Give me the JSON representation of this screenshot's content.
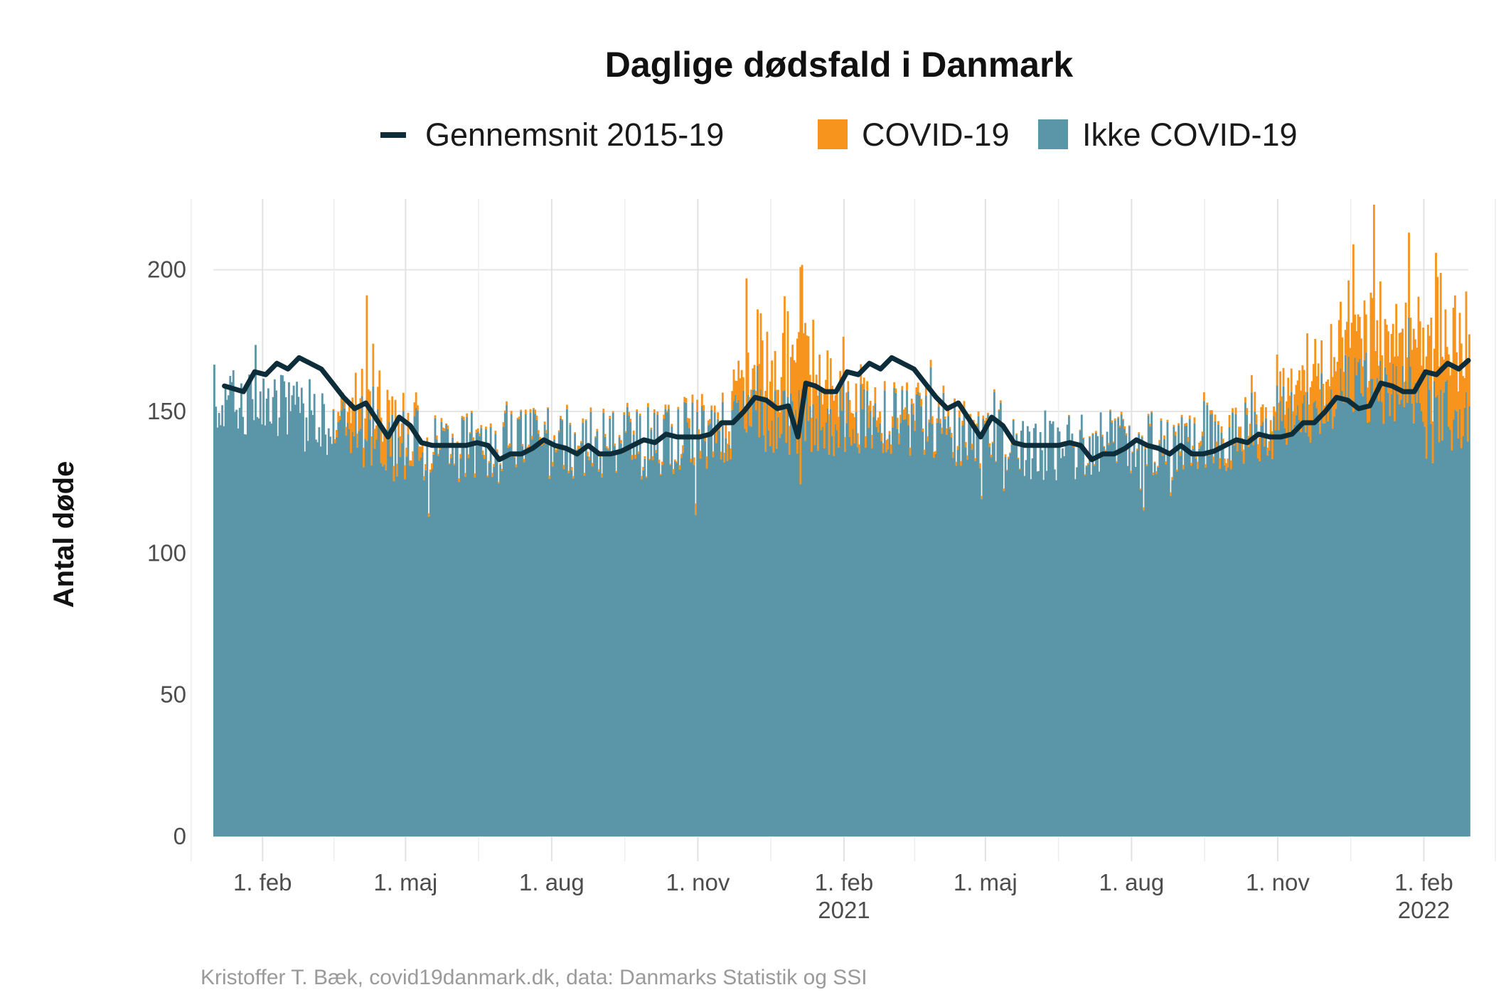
{
  "chart_data": {
    "type": "bar",
    "stacked": true,
    "title": "Daglige dødsfald i Danmark",
    "ylabel": "Antal døde",
    "xlabel": "",
    "caption": "Kristoffer T. Bæk, covid19danmark.dk, data: Danmarks Statistik og SSI",
    "legend_position": "top",
    "grid": true,
    "x_range": [
      "2020-01-01",
      "2022-03-01"
    ],
    "ylim": [
      0,
      225
    ],
    "y_ticks": [
      0,
      50,
      100,
      150,
      200
    ],
    "y_tick_labels": [
      "0",
      "50",
      "100",
      "150",
      "200"
    ],
    "x_ticks": [
      {
        "date": "2020-02-01",
        "label": "1. feb",
        "sublabel": ""
      },
      {
        "date": "2020-05-01",
        "label": "1. maj",
        "sublabel": ""
      },
      {
        "date": "2020-08-01",
        "label": "1. aug",
        "sublabel": ""
      },
      {
        "date": "2020-11-01",
        "label": "1. nov",
        "sublabel": ""
      },
      {
        "date": "2021-02-01",
        "label": "1. feb",
        "sublabel": "2021"
      },
      {
        "date": "2021-05-01",
        "label": "1. maj",
        "sublabel": ""
      },
      {
        "date": "2021-08-01",
        "label": "1. aug",
        "sublabel": ""
      },
      {
        "date": "2021-11-01",
        "label": "1. nov",
        "sublabel": ""
      },
      {
        "date": "2022-02-01",
        "label": "1. feb",
        "sublabel": "2022"
      }
    ],
    "legend": [
      {
        "key": "avg",
        "label": "Gennemsnit 2015-19",
        "kind": "line",
        "color": "#0d2d3a"
      },
      {
        "key": "covid",
        "label": "COVID-19",
        "kind": "fill",
        "color": "#f7941d"
      },
      {
        "key": "noncovid",
        "label": "Ikke COVID-19",
        "kind": "fill",
        "color": "#5b96a8"
      }
    ],
    "series": [
      {
        "name": "Gennemsnit 2015-19",
        "kind": "line",
        "color": "#0d2d3a",
        "points": [
          [
            "2020-01-08",
            159
          ],
          [
            "2020-01-14",
            158
          ],
          [
            "2020-01-20",
            157
          ],
          [
            "2020-01-27",
            164
          ],
          [
            "2020-02-03",
            163
          ],
          [
            "2020-02-10",
            167
          ],
          [
            "2020-02-17",
            165
          ],
          [
            "2020-02-24",
            169
          ],
          [
            "2020-03-02",
            167
          ],
          [
            "2020-03-09",
            165
          ],
          [
            "2020-03-16",
            160
          ],
          [
            "2020-03-23",
            155
          ],
          [
            "2020-03-30",
            151
          ],
          [
            "2020-04-06",
            153
          ],
          [
            "2020-04-13",
            147
          ],
          [
            "2020-04-20",
            141
          ],
          [
            "2020-04-27",
            148
          ],
          [
            "2020-05-04",
            145
          ],
          [
            "2020-05-11",
            139
          ],
          [
            "2020-05-18",
            138
          ],
          [
            "2020-05-25",
            138
          ],
          [
            "2020-06-01",
            138
          ],
          [
            "2020-06-08",
            138
          ],
          [
            "2020-06-15",
            139
          ],
          [
            "2020-06-22",
            138
          ],
          [
            "2020-06-29",
            133
          ],
          [
            "2020-07-06",
            135
          ],
          [
            "2020-07-13",
            135
          ],
          [
            "2020-07-20",
            137
          ],
          [
            "2020-07-27",
            140
          ],
          [
            "2020-08-03",
            138
          ],
          [
            "2020-08-10",
            137
          ],
          [
            "2020-08-17",
            135
          ],
          [
            "2020-08-24",
            138
          ],
          [
            "2020-08-31",
            135
          ],
          [
            "2020-09-07",
            135
          ],
          [
            "2020-09-14",
            136
          ],
          [
            "2020-09-21",
            138
          ],
          [
            "2020-09-28",
            140
          ],
          [
            "2020-10-05",
            139
          ],
          [
            "2020-10-12",
            142
          ],
          [
            "2020-10-19",
            141
          ],
          [
            "2020-10-26",
            141
          ],
          [
            "2020-11-02",
            141
          ],
          [
            "2020-11-09",
            142
          ],
          [
            "2020-11-16",
            146
          ],
          [
            "2020-11-23",
            146
          ],
          [
            "2020-11-30",
            150
          ],
          [
            "2020-12-07",
            155
          ],
          [
            "2020-12-14",
            154
          ],
          [
            "2020-12-21",
            151
          ],
          [
            "2020-12-28",
            152
          ],
          [
            "2021-01-03",
            141
          ],
          [
            "2021-01-08",
            160
          ],
          [
            "2021-01-14",
            159
          ],
          [
            "2021-01-20",
            157
          ],
          [
            "2021-01-27",
            157
          ],
          [
            "2021-02-03",
            164
          ],
          [
            "2021-02-10",
            163
          ],
          [
            "2021-02-17",
            167
          ],
          [
            "2021-02-24",
            165
          ],
          [
            "2021-03-03",
            169
          ],
          [
            "2021-03-10",
            167
          ],
          [
            "2021-03-17",
            165
          ],
          [
            "2021-03-24",
            160
          ],
          [
            "2021-03-31",
            155
          ],
          [
            "2021-04-07",
            151
          ],
          [
            "2021-04-14",
            153
          ],
          [
            "2021-04-21",
            147
          ],
          [
            "2021-04-28",
            141
          ],
          [
            "2021-05-05",
            148
          ],
          [
            "2021-05-12",
            145
          ],
          [
            "2021-05-19",
            139
          ],
          [
            "2021-05-26",
            138
          ],
          [
            "2021-06-02",
            138
          ],
          [
            "2021-06-09",
            138
          ],
          [
            "2021-06-16",
            138
          ],
          [
            "2021-06-23",
            139
          ],
          [
            "2021-06-30",
            138
          ],
          [
            "2021-07-07",
            133
          ],
          [
            "2021-07-14",
            135
          ],
          [
            "2021-07-21",
            135
          ],
          [
            "2021-07-28",
            137
          ],
          [
            "2021-08-04",
            140
          ],
          [
            "2021-08-11",
            138
          ],
          [
            "2021-08-18",
            137
          ],
          [
            "2021-08-25",
            135
          ],
          [
            "2021-09-01",
            138
          ],
          [
            "2021-09-08",
            135
          ],
          [
            "2021-09-15",
            135
          ],
          [
            "2021-09-22",
            136
          ],
          [
            "2021-09-29",
            138
          ],
          [
            "2021-10-06",
            140
          ],
          [
            "2021-10-13",
            139
          ],
          [
            "2021-10-20",
            142
          ],
          [
            "2021-10-27",
            141
          ],
          [
            "2021-11-03",
            141
          ],
          [
            "2021-11-10",
            142
          ],
          [
            "2021-11-17",
            146
          ],
          [
            "2021-11-24",
            146
          ],
          [
            "2021-12-01",
            150
          ],
          [
            "2021-12-08",
            155
          ],
          [
            "2021-12-15",
            154
          ],
          [
            "2021-12-22",
            151
          ],
          [
            "2021-12-29",
            152
          ],
          [
            "2022-01-05",
            160
          ],
          [
            "2022-01-12",
            159
          ],
          [
            "2022-01-19",
            157
          ],
          [
            "2022-01-26",
            157
          ],
          [
            "2022-02-02",
            164
          ],
          [
            "2022-02-09",
            163
          ],
          [
            "2022-02-16",
            167
          ],
          [
            "2022-02-23",
            165
          ],
          [
            "2022-03-01",
            168
          ]
        ]
      },
      {
        "name": "Ikke COVID-19",
        "kind": "bar",
        "color": "#5b96a8",
        "note": "daily non-covid deaths; approximate level read from the bars",
        "level": [
          [
            "2020-01-01",
            155
          ],
          [
            "2020-02-15",
            150
          ],
          [
            "2020-03-15",
            147
          ],
          [
            "2020-04-15",
            140
          ],
          [
            "2020-06-01",
            137
          ],
          [
            "2020-08-01",
            138
          ],
          [
            "2020-10-01",
            139
          ],
          [
            "2020-11-15",
            143
          ],
          [
            "2020-12-15",
            148
          ],
          [
            "2021-01-15",
            146
          ],
          [
            "2021-02-15",
            148
          ],
          [
            "2021-04-01",
            145
          ],
          [
            "2021-06-01",
            138
          ],
          [
            "2021-08-01",
            139
          ],
          [
            "2021-10-01",
            142
          ],
          [
            "2021-11-15",
            150
          ],
          [
            "2021-12-15",
            158
          ],
          [
            "2022-01-15",
            155
          ],
          [
            "2022-02-15",
            150
          ],
          [
            "2022-03-01",
            145
          ]
        ]
      },
      {
        "name": "COVID-19",
        "kind": "bar",
        "color": "#f7941d",
        "note": "daily covid deaths stacked on top; approximate level",
        "level": [
          [
            "2020-01-01",
            0
          ],
          [
            "2020-03-15",
            0
          ],
          [
            "2020-04-01",
            10
          ],
          [
            "2020-04-15",
            12
          ],
          [
            "2020-05-01",
            5
          ],
          [
            "2020-05-20",
            1
          ],
          [
            "2020-10-15",
            1
          ],
          [
            "2020-11-20",
            5
          ],
          [
            "2020-12-10",
            18
          ],
          [
            "2020-12-25",
            22
          ],
          [
            "2021-01-05",
            28
          ],
          [
            "2021-01-20",
            15
          ],
          [
            "2021-02-10",
            6
          ],
          [
            "2021-03-01",
            3
          ],
          [
            "2021-04-01",
            2
          ],
          [
            "2021-06-01",
            0
          ],
          [
            "2021-09-01",
            1
          ],
          [
            "2021-10-15",
            4
          ],
          [
            "2021-11-15",
            12
          ],
          [
            "2021-12-10",
            18
          ],
          [
            "2021-12-25",
            20
          ],
          [
            "2022-01-10",
            18
          ],
          [
            "2022-02-01",
            25
          ],
          [
            "2022-02-20",
            28
          ],
          [
            "2022-03-01",
            22
          ]
        ]
      }
    ],
    "annotated_peaks": [
      {
        "date": "2021-12-31",
        "value": 223
      },
      {
        "date": "2021-12-18",
        "value": 209
      },
      {
        "date": "2021-01-04",
        "value": 201
      },
      {
        "date": "2020-12-01",
        "value": 197
      },
      {
        "date": "2022-02-08",
        "value": 206
      },
      {
        "date": "2020-04-06",
        "value": 191
      }
    ]
  }
}
